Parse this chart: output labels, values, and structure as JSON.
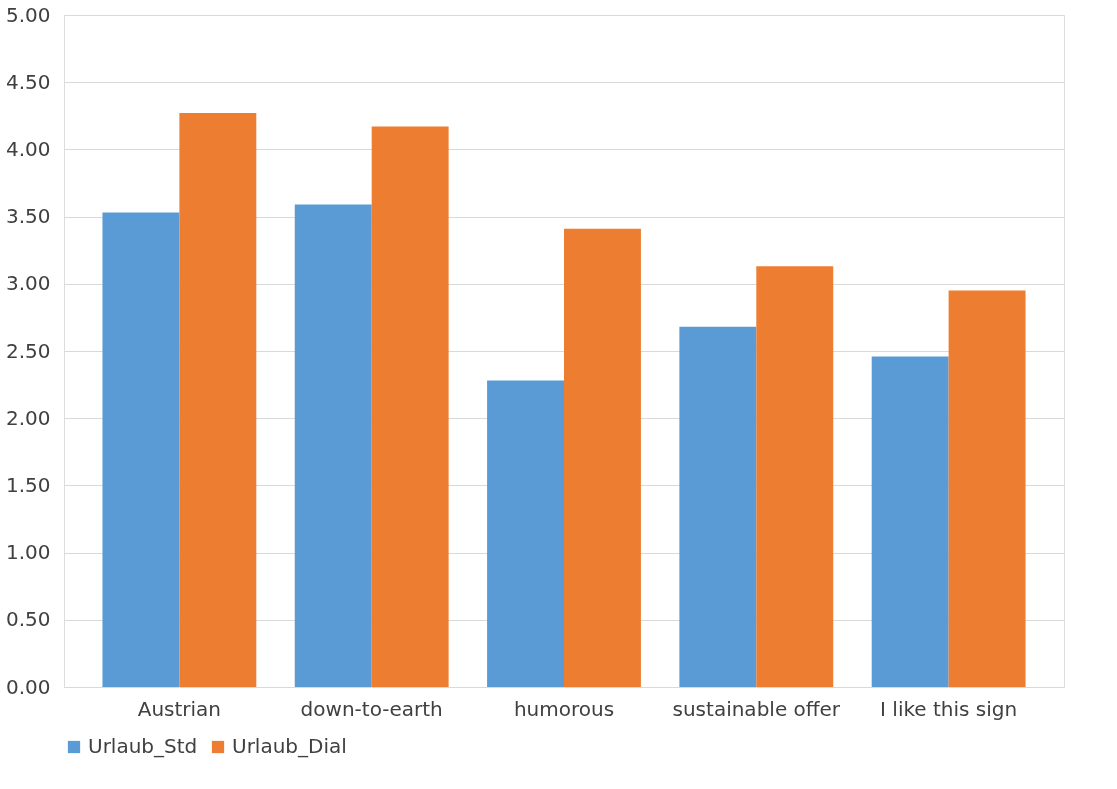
{
  "chart_data": {
    "type": "bar",
    "categories": [
      "Austrian",
      "down-to-earth",
      "humorous",
      "sustainable offer",
      "I like this sign"
    ],
    "series": [
      {
        "name": "Urlaub_Std",
        "color": "#5b9bd5",
        "values": [
          3.53,
          3.59,
          2.28,
          2.68,
          2.46
        ]
      },
      {
        "name": "Urlaub_Dial",
        "color": "#ed7d31",
        "values": [
          4.27,
          4.17,
          3.41,
          3.13,
          2.95
        ]
      }
    ],
    "ylim": [
      0,
      5
    ],
    "yticks": [
      {
        "value": 0,
        "label": "0.00"
      },
      {
        "value": 0.5,
        "label": "0.50"
      },
      {
        "value": 1,
        "label": "1.00"
      },
      {
        "value": 1.5,
        "label": "1.50"
      },
      {
        "value": 2,
        "label": "2.00"
      },
      {
        "value": 2.5,
        "label": "2.50"
      },
      {
        "value": 3,
        "label": "3.00"
      },
      {
        "value": 3.5,
        "label": "3.50"
      },
      {
        "value": 4,
        "label": "4.00"
      },
      {
        "value": 4.5,
        "label": "4.50"
      },
      {
        "value": 5,
        "label": "5.00"
      }
    ],
    "grid": "y",
    "legend": "bottom"
  }
}
